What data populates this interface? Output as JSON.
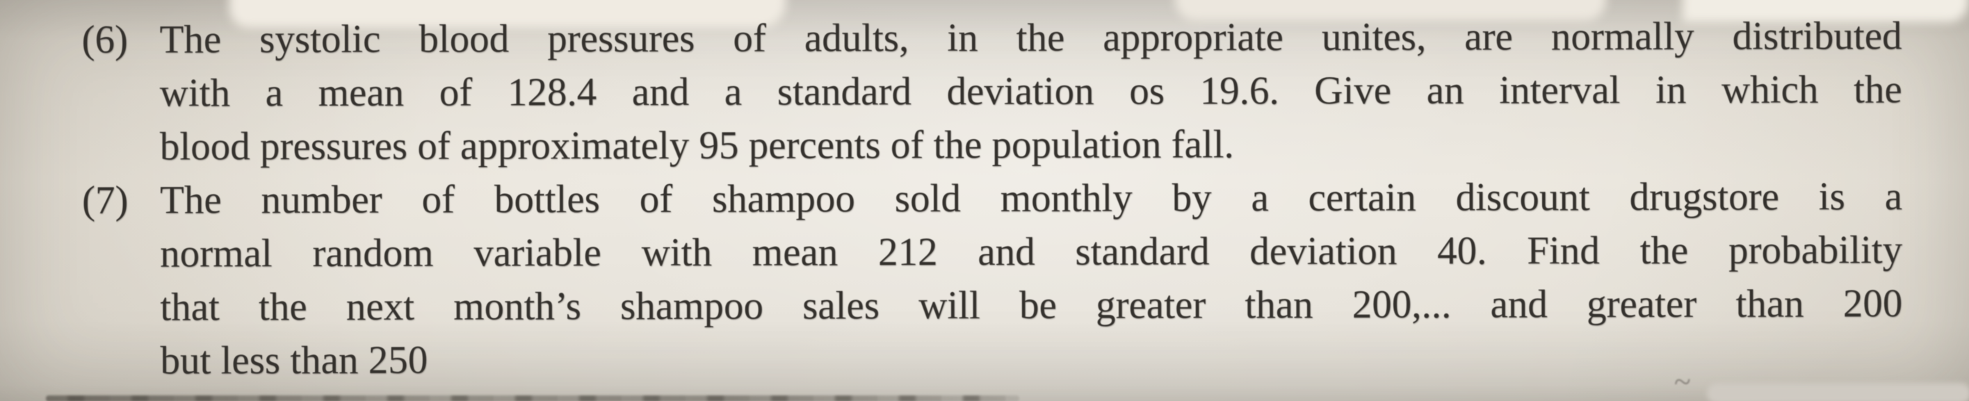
{
  "doc": {
    "problems": [
      {
        "number": "(6)",
        "lines": [
          "The systolic blood pressures of adults, in the appropriate unites, are normally distributed",
          "with a mean of 128.4 and a standard deviation os 19.6.  Give an interval in which the",
          "blood pressures of approximately 95 percents of the population fall."
        ]
      },
      {
        "number": "(7)",
        "lines": [
          "The number of bottles of shampoo sold monthly by a certain discount drugstore is a",
          "normal random variable with mean 212 and standard deviation 40.  Find the probability",
          "that the next month’s shampoo sales will be greater than 200,...  and greater than 200",
          "but less than 250"
        ]
      }
    ]
  },
  "artifacts": {
    "top_mark_1": "¯",
    "top_mark_2": "˘",
    "bottom_right_mark": "~"
  },
  "appearance": {
    "paper_color": "#e8e3d9",
    "ink_color": "#34312d"
  }
}
